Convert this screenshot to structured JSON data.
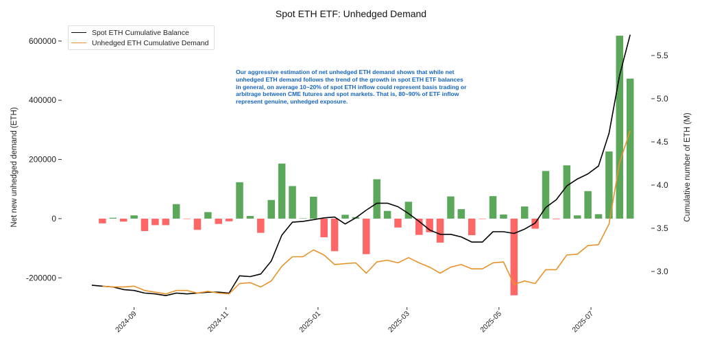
{
  "chart_data": {
    "type": "bar+line",
    "title": "Spot ETH ETF: Unhedged Demand",
    "xlabel": "",
    "ylabel_left": "Net new unhedged demand (ETH)",
    "ylabel_right": "Cumulative number of ETH (M)",
    "ylim_left": [
      -299000,
      646000
    ],
    "ylim_right": [
      2.587,
      5.825
    ],
    "xlim": [
      "2024-07-15",
      "2025-08-10"
    ],
    "grid": false,
    "legend_position": "top-left",
    "left_ticks": [
      "-200000",
      "0",
      "200000",
      "400000",
      "600000"
    ],
    "right_ticks": [
      "3.0",
      "3.5",
      "4.0",
      "4.5",
      "5.0",
      "5.5"
    ],
    "x_ticks": [
      "2024-09",
      "2024-11",
      "2025-01",
      "2025-03",
      "2025-05",
      "2025-07"
    ],
    "x": [
      "2024-08-04",
      "2024-08-11",
      "2024-08-18",
      "2024-08-25",
      "2024-09-01",
      "2024-09-08",
      "2024-09-15",
      "2024-09-22",
      "2024-09-29",
      "2024-10-06",
      "2024-10-13",
      "2024-10-20",
      "2024-10-27",
      "2024-11-03",
      "2024-11-10",
      "2024-11-17",
      "2024-11-24",
      "2024-12-01",
      "2024-12-08",
      "2024-12-15",
      "2024-12-22",
      "2024-12-29",
      "2025-01-05",
      "2025-01-12",
      "2025-01-19",
      "2025-01-26",
      "2025-02-02",
      "2025-02-09",
      "2025-02-16",
      "2025-02-23",
      "2025-03-02",
      "2025-03-09",
      "2025-03-16",
      "2025-03-23",
      "2025-03-30",
      "2025-04-06",
      "2025-04-13",
      "2025-04-20",
      "2025-04-27",
      "2025-05-04",
      "2025-05-11",
      "2025-05-18",
      "2025-05-25",
      "2025-06-01",
      "2025-06-08",
      "2025-06-15",
      "2025-06-22",
      "2025-06-29",
      "2025-07-06",
      "2025-07-13",
      "2025-07-20",
      "2025-07-27"
    ],
    "bars": {
      "axis": "left",
      "positive_color": "#5ba85b",
      "negative_color": "#ff6666",
      "values": [
        null,
        -16000,
        3000,
        -10000,
        11000,
        -42000,
        -22000,
        -22000,
        49000,
        -1000,
        -38000,
        22000,
        -18000,
        -9000,
        123000,
        9000,
        -48000,
        63000,
        186000,
        110000,
        1000,
        74000,
        -63000,
        -110000,
        13000,
        5000,
        -120000,
        133000,
        26000,
        -30000,
        57000,
        -55000,
        -46000,
        -81000,
        75000,
        32000,
        -56000,
        -1000,
        76000,
        14000,
        -259000,
        41000,
        -34000,
        161000,
        -2000,
        180000,
        11000,
        93000,
        15000,
        227000,
        618000,
        473000
      ]
    },
    "series": [
      {
        "name": "Spot ETH Cumulative Balance",
        "axis": "right",
        "color": "#000000",
        "values": [
          2.84,
          2.83,
          2.82,
          2.79,
          2.78,
          2.75,
          2.74,
          2.72,
          2.75,
          2.74,
          2.75,
          2.76,
          2.76,
          2.75,
          2.95,
          2.94,
          2.97,
          3.12,
          3.42,
          3.57,
          3.58,
          3.6,
          3.62,
          3.63,
          3.55,
          3.62,
          3.71,
          3.79,
          3.79,
          3.75,
          3.67,
          3.58,
          3.48,
          3.43,
          3.43,
          3.4,
          3.34,
          3.34,
          3.46,
          3.46,
          3.44,
          3.49,
          3.56,
          3.74,
          3.83,
          3.99,
          4.07,
          4.13,
          4.22,
          4.6,
          5.27,
          5.74
        ]
      },
      {
        "name": "Unhedged ETH Cumulative Demand",
        "axis": "right",
        "color": "#e8922a",
        "values": [
          null,
          2.83,
          2.82,
          2.82,
          2.83,
          2.78,
          2.76,
          2.74,
          2.78,
          2.78,
          2.75,
          2.77,
          2.75,
          2.74,
          2.86,
          2.87,
          2.82,
          2.89,
          3.06,
          3.17,
          3.17,
          3.25,
          3.19,
          3.08,
          3.09,
          3.1,
          2.98,
          3.11,
          3.13,
          3.1,
          3.16,
          3.1,
          3.05,
          2.98,
          3.05,
          3.08,
          3.03,
          3.03,
          3.1,
          3.11,
          2.85,
          2.89,
          2.86,
          3.02,
          3.02,
          3.19,
          3.2,
          3.3,
          3.31,
          3.55,
          4.26,
          4.63
        ]
      }
    ],
    "annotation": "Our aggressive estimation of net unhedged ETH demand shows that while net unhedged ETH demand follows the trend of the growth in spot ETH ETF balances in general, on average 10~20% of spot ETH inflow could represent basis trading or arbitrage between CME futures and spot markets. That is, 80~90% of ETF inflow represent genuine, unhedged exposure."
  }
}
